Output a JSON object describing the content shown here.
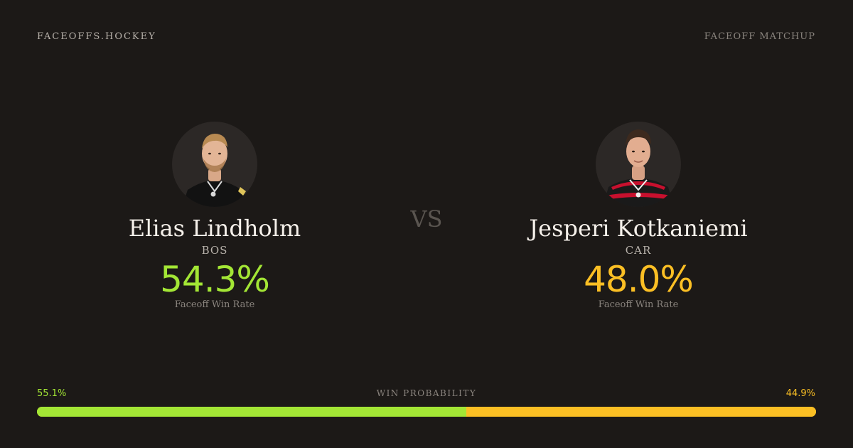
{
  "header": {
    "brand": "FACEOFFS.HOCKEY",
    "page_label": "FACEOFF MATCHUP"
  },
  "players": [
    {
      "name": "Elias Lindholm",
      "team": "BOS",
      "win_rate": "54.3%",
      "win_rate_label": "Faceoff Win Rate",
      "accent": "#a3e635"
    },
    {
      "name": "Jesperi Kotkaniemi",
      "team": "CAR",
      "win_rate": "48.0%",
      "win_rate_label": "Faceoff Win Rate",
      "accent": "#fbbf24"
    }
  ],
  "vs_label": "VS",
  "win_probability": {
    "title": "WIN PROBABILITY",
    "left_label": "55.1%",
    "right_label": "44.9%",
    "left_value": 55.1,
    "right_value": 44.9
  },
  "colors": {
    "background": "#1c1917",
    "left_accent": "#a3e635",
    "right_accent": "#fbbf24"
  }
}
